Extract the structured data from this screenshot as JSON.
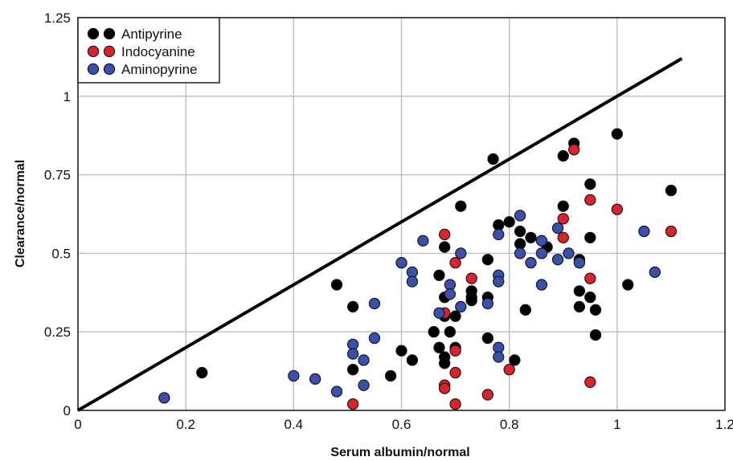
{
  "chart_data": {
    "type": "scatter",
    "xlabel": "Serum albumin/normal",
    "ylabel": "Clearance/normal",
    "xlim": [
      0,
      1.2
    ],
    "ylim": [
      0,
      1.25
    ],
    "x_ticks": [
      "0",
      "0.2",
      "0.4",
      "0.6",
      "0.8",
      "1",
      "1.2"
    ],
    "y_ticks": [
      "0",
      "0.25",
      "0.5",
      "0.75",
      "1",
      "1.25"
    ],
    "grid": true,
    "legend_position": "top-left",
    "reference_line": {
      "points": [
        [
          0,
          0
        ],
        [
          1.12,
          1.12
        ]
      ]
    },
    "series": [
      {
        "name": "Antipyrine",
        "color": "#000000",
        "points": [
          [
            0.23,
            0.12
          ],
          [
            0.48,
            0.4
          ],
          [
            0.51,
            0.33
          ],
          [
            0.51,
            0.13
          ],
          [
            0.58,
            0.11
          ],
          [
            0.6,
            0.19
          ],
          [
            0.62,
            0.16
          ],
          [
            0.66,
            0.25
          ],
          [
            0.67,
            0.43
          ],
          [
            0.67,
            0.2
          ],
          [
            0.68,
            0.52
          ],
          [
            0.68,
            0.36
          ],
          [
            0.68,
            0.3
          ],
          [
            0.68,
            0.17
          ],
          [
            0.68,
            0.15
          ],
          [
            0.69,
            0.25
          ],
          [
            0.7,
            0.3
          ],
          [
            0.7,
            0.2
          ],
          [
            0.71,
            0.65
          ],
          [
            0.73,
            0.38
          ],
          [
            0.73,
            0.36
          ],
          [
            0.73,
            0.35
          ],
          [
            0.76,
            0.48
          ],
          [
            0.76,
            0.36
          ],
          [
            0.76,
            0.23
          ],
          [
            0.77,
            0.8
          ],
          [
            0.78,
            0.59
          ],
          [
            0.8,
            0.6
          ],
          [
            0.81,
            0.16
          ],
          [
            0.82,
            0.57
          ],
          [
            0.82,
            0.53
          ],
          [
            0.83,
            0.32
          ],
          [
            0.84,
            0.55
          ],
          [
            0.87,
            0.52
          ],
          [
            0.9,
            0.81
          ],
          [
            0.9,
            0.65
          ],
          [
            0.92,
            0.85
          ],
          [
            0.93,
            0.48
          ],
          [
            0.93,
            0.38
          ],
          [
            0.93,
            0.33
          ],
          [
            0.95,
            0.72
          ],
          [
            0.95,
            0.55
          ],
          [
            0.95,
            0.36
          ],
          [
            0.96,
            0.32
          ],
          [
            0.96,
            0.24
          ],
          [
            1.0,
            0.88
          ],
          [
            1.02,
            0.4
          ],
          [
            1.1,
            0.7
          ]
        ]
      },
      {
        "name": "Indocyanine",
        "color": "#e0202a",
        "points": [
          [
            0.51,
            0.02
          ],
          [
            0.68,
            0.56
          ],
          [
            0.68,
            0.31
          ],
          [
            0.68,
            0.08
          ],
          [
            0.68,
            0.07
          ],
          [
            0.7,
            0.47
          ],
          [
            0.7,
            0.19
          ],
          [
            0.7,
            0.12
          ],
          [
            0.7,
            0.02
          ],
          [
            0.73,
            0.42
          ],
          [
            0.76,
            0.05
          ],
          [
            0.8,
            0.13
          ],
          [
            0.9,
            0.61
          ],
          [
            0.9,
            0.55
          ],
          [
            0.92,
            0.83
          ],
          [
            0.95,
            0.67
          ],
          [
            0.95,
            0.42
          ],
          [
            0.95,
            0.09
          ],
          [
            1.0,
            0.64
          ],
          [
            1.1,
            0.57
          ]
        ]
      },
      {
        "name": "Aminopyrine",
        "color": "#3a50b0",
        "points": [
          [
            0.16,
            0.04
          ],
          [
            0.4,
            0.11
          ],
          [
            0.44,
            0.1
          ],
          [
            0.48,
            0.06
          ],
          [
            0.51,
            0.21
          ],
          [
            0.51,
            0.18
          ],
          [
            0.53,
            0.16
          ],
          [
            0.53,
            0.08
          ],
          [
            0.55,
            0.34
          ],
          [
            0.55,
            0.23
          ],
          [
            0.6,
            0.47
          ],
          [
            0.62,
            0.44
          ],
          [
            0.62,
            0.41
          ],
          [
            0.64,
            0.54
          ],
          [
            0.67,
            0.31
          ],
          [
            0.69,
            0.4
          ],
          [
            0.69,
            0.37
          ],
          [
            0.71,
            0.5
          ],
          [
            0.71,
            0.33
          ],
          [
            0.76,
            0.34
          ],
          [
            0.78,
            0.56
          ],
          [
            0.78,
            0.43
          ],
          [
            0.78,
            0.41
          ],
          [
            0.78,
            0.2
          ],
          [
            0.78,
            0.17
          ],
          [
            0.82,
            0.62
          ],
          [
            0.82,
            0.5
          ],
          [
            0.84,
            0.47
          ],
          [
            0.86,
            0.54
          ],
          [
            0.86,
            0.5
          ],
          [
            0.86,
            0.4
          ],
          [
            0.89,
            0.58
          ],
          [
            0.89,
            0.48
          ],
          [
            0.91,
            0.5
          ],
          [
            0.93,
            0.47
          ],
          [
            1.05,
            0.57
          ],
          [
            1.07,
            0.44
          ]
        ]
      }
    ]
  }
}
